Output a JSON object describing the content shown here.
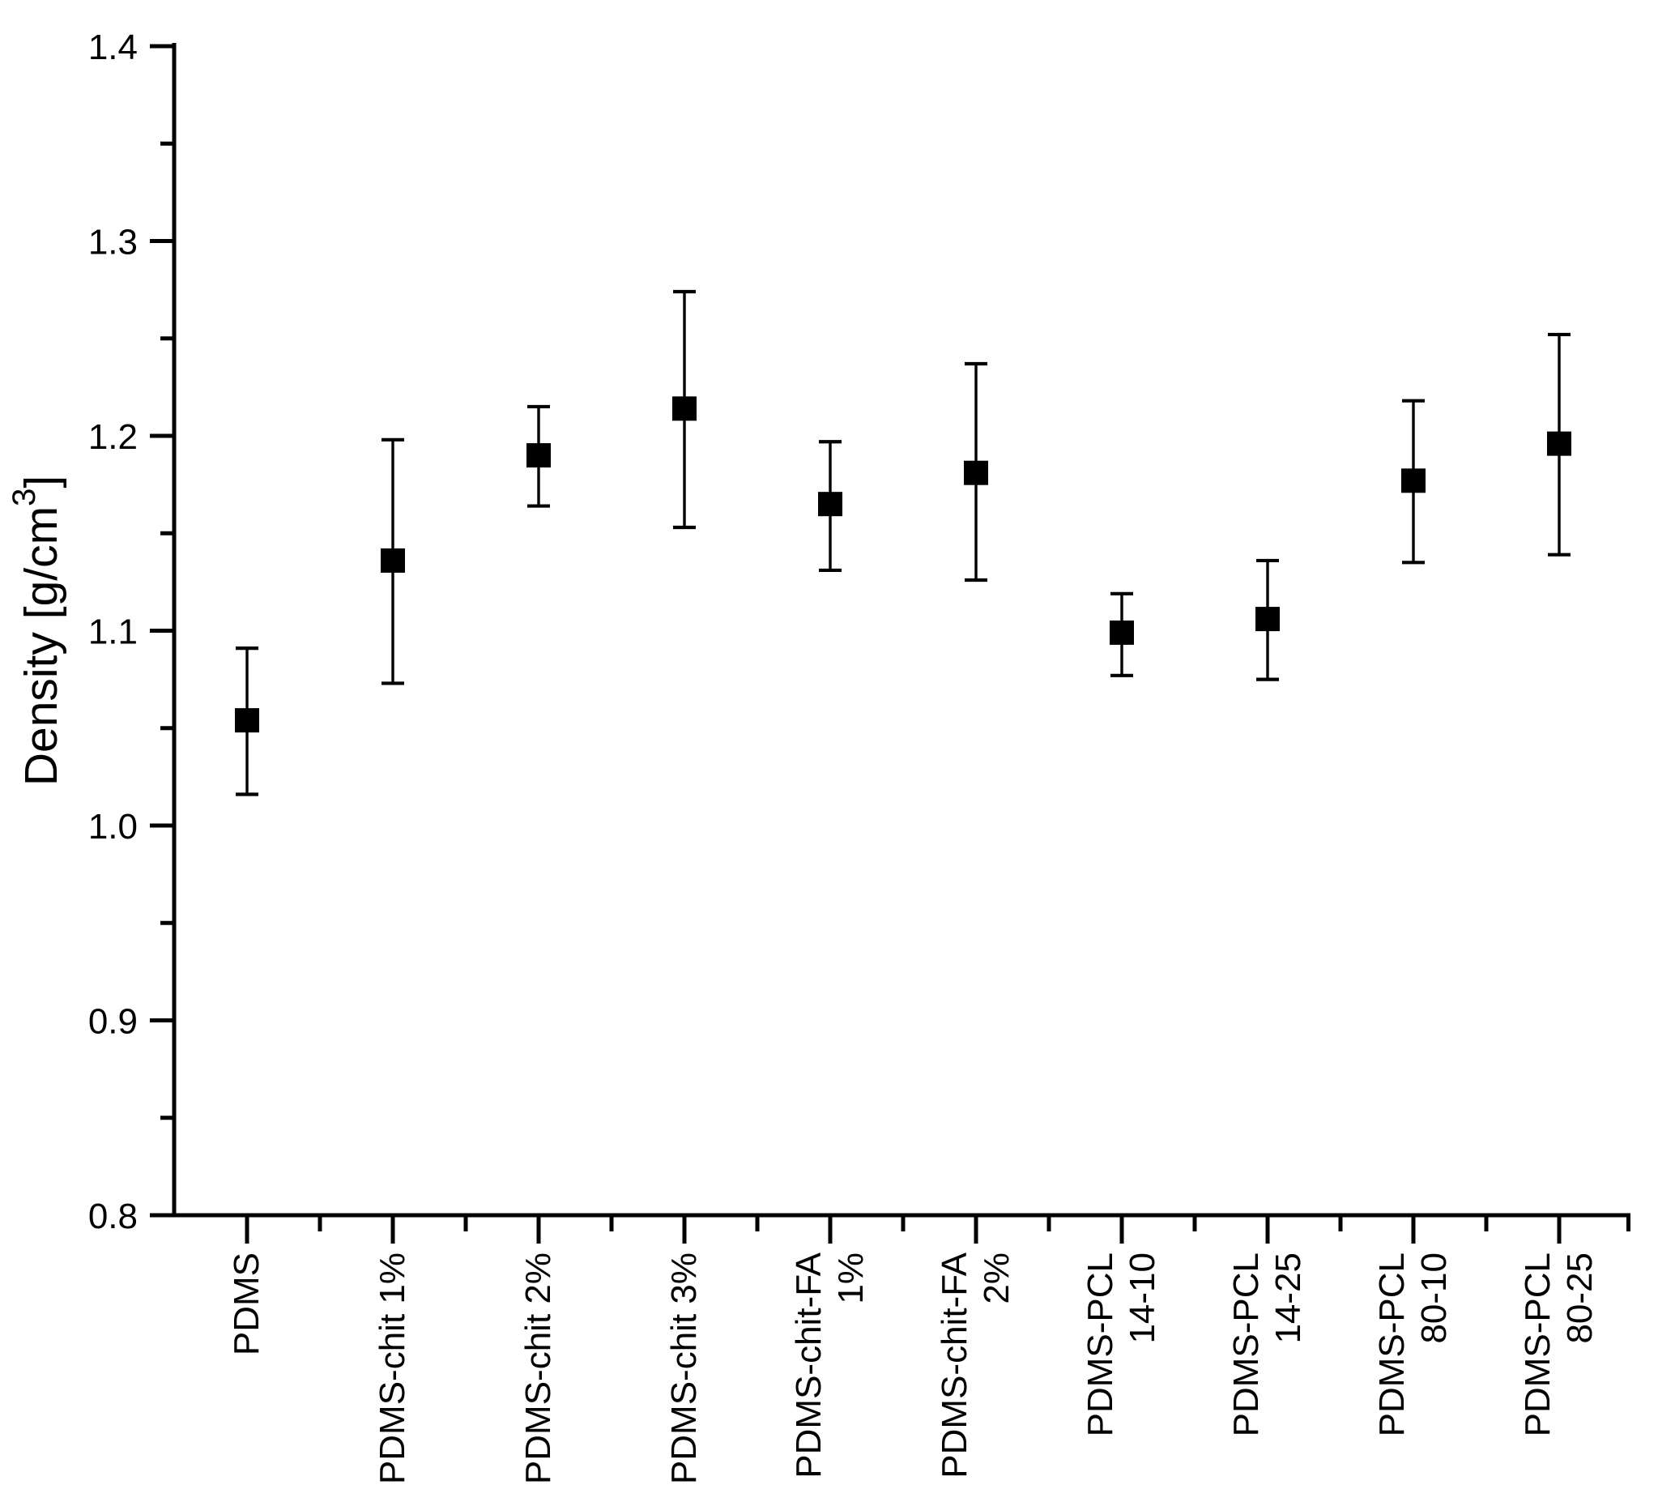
{
  "figure": {
    "background_color": "#ffffff",
    "ink_color": "#000000"
  },
  "chart_data": {
    "type": "scatter",
    "title": "",
    "xlabel": "",
    "ylabel": "Density [g/cm³]",
    "ylabel_parts": {
      "main": "Density [g/cm",
      "sup": "3",
      "end": "]"
    },
    "ylim": [
      0.8,
      1.4
    ],
    "grid": false,
    "legend": null,
    "marker_style": "filled-square",
    "error_bars": "plus-minus with caps",
    "y_major_ticks": [
      1.4,
      1.3,
      1.2,
      1.1,
      1.0,
      0.9,
      0.8
    ],
    "y_tick_labels": [
      "1.4",
      "1.3",
      "1.2",
      "1.1",
      "1.0",
      "0.9",
      "0.8"
    ],
    "y_minor_ticks": [
      1.35,
      1.25,
      1.15,
      1.05,
      0.95,
      0.85
    ],
    "categories": [
      "PDMS",
      "PDMS-chit 1%",
      "PDMS-chit 2%",
      "PDMS-chit 3%",
      "PDMS-chit-FA 1%",
      "PDMS-chit-FA 2%",
      "PDMS-PCL 14-10",
      "PDMS-PCL 14-25",
      "PDMS-PCL 80-10",
      "PDMS-PCL 80-25"
    ],
    "category_label_lines": [
      [
        "PDMS"
      ],
      [
        "PDMS-chit 1%"
      ],
      [
        "PDMS-chit 2%"
      ],
      [
        "PDMS-chit 3%"
      ],
      [
        "PDMS-chit-FA",
        "1%"
      ],
      [
        "PDMS-chit-FA",
        "2%"
      ],
      [
        "PDMS-PCL",
        "14-10"
      ],
      [
        "PDMS-PCL",
        "14-25"
      ],
      [
        "PDMS-PCL",
        "80-10"
      ],
      [
        "PDMS-PCL",
        "80-25"
      ]
    ],
    "series": [
      {
        "name": "Density",
        "points": [
          {
            "category": "PDMS",
            "value": 1.054,
            "error_plus": 0.037,
            "error_minus": 0.038
          },
          {
            "category": "PDMS-chit 1%",
            "value": 1.136,
            "error_plus": 0.062,
            "error_minus": 0.063
          },
          {
            "category": "PDMS-chit 2%",
            "value": 1.19,
            "error_plus": 0.025,
            "error_minus": 0.026
          },
          {
            "category": "PDMS-chit 3%",
            "value": 1.214,
            "error_plus": 0.06,
            "error_minus": 0.061
          },
          {
            "category": "PDMS-chit-FA 1%",
            "value": 1.165,
            "error_plus": 0.032,
            "error_minus": 0.034
          },
          {
            "category": "PDMS-chit-FA 2%",
            "value": 1.181,
            "error_plus": 0.056,
            "error_minus": 0.055
          },
          {
            "category": "PDMS-PCL 14-10",
            "value": 1.099,
            "error_plus": 0.02,
            "error_minus": 0.022
          },
          {
            "category": "PDMS-PCL 14-25",
            "value": 1.106,
            "error_plus": 0.03,
            "error_minus": 0.031
          },
          {
            "category": "PDMS-PCL 80-10",
            "value": 1.177,
            "error_plus": 0.041,
            "error_minus": 0.042
          },
          {
            "category": "PDMS-PCL 80-25",
            "value": 1.196,
            "error_plus": 0.056,
            "error_minus": 0.057
          }
        ]
      }
    ]
  }
}
